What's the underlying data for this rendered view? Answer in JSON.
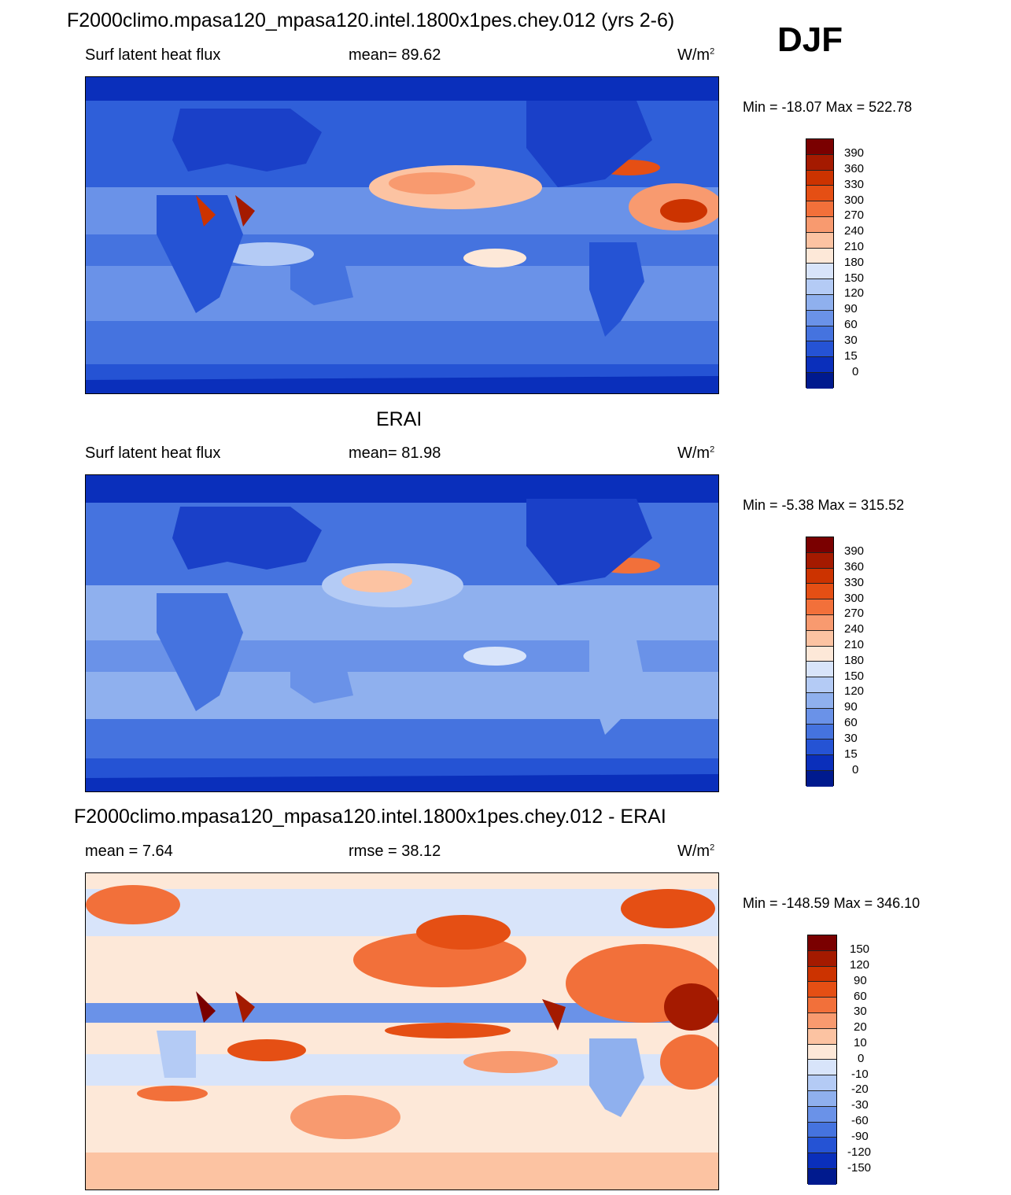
{
  "season": "DJF",
  "panels": [
    {
      "title": "F2000climo.mpasa120_mpasa120.intel.1800x1pes.chey.012 (yrs 2-6)",
      "left_label": "Surf latent heat flux",
      "center_label": "mean=  89.62",
      "unit_base": "W/m",
      "unit_exp": "2",
      "minmax": "Min = -18.07 Max = 522.78",
      "legend_labels": [
        "390",
        "360",
        "330",
        "300",
        "270",
        "240",
        "210",
        "180",
        "150",
        "120",
        "90",
        "60",
        "30",
        "15",
        "0"
      ],
      "legend_colors": [
        "#7a0000",
        "#a41a00",
        "#cc3300",
        "#e54f14",
        "#f2703a",
        "#f89a6f",
        "#fcc3a2",
        "#fde8d8",
        "#d8e4fa",
        "#b4cbf5",
        "#8fb0ee",
        "#6a92e8",
        "#4573df",
        "#2553d4",
        "#0a2fbb",
        "#001a8e"
      ],
      "map_description": "model surface latent heat flux climatology"
    },
    {
      "title": "ERAI",
      "left_label": "Surf latent heat flux",
      "center_label": "mean=  81.98",
      "unit_base": "W/m",
      "unit_exp": "2",
      "minmax": "Min =  -5.38 Max = 315.52",
      "legend_labels": [
        "390",
        "360",
        "330",
        "300",
        "270",
        "240",
        "210",
        "180",
        "150",
        "120",
        "90",
        "60",
        "30",
        "15",
        "0"
      ],
      "legend_colors": [
        "#7a0000",
        "#a41a00",
        "#cc3300",
        "#e54f14",
        "#f2703a",
        "#f89a6f",
        "#fcc3a2",
        "#fde8d8",
        "#d8e4fa",
        "#b4cbf5",
        "#8fb0ee",
        "#6a92e8",
        "#4573df",
        "#2553d4",
        "#0a2fbb",
        "#001a8e"
      ],
      "map_description": "ERAI surface latent heat flux climatology"
    },
    {
      "title": "F2000climo.mpasa120_mpasa120.intel.1800x1pes.chey.012 - ERAI",
      "left_label": "mean =   7.64",
      "center_label": "rmse =  38.12",
      "unit_base": "W/m",
      "unit_exp": "2",
      "minmax": "Min = -148.59 Max = 346.10",
      "legend_labels": [
        "150",
        "120",
        "90",
        "60",
        "30",
        "20",
        "10",
        "0",
        "-10",
        "-20",
        "-30",
        "-60",
        "-90",
        "-120",
        "-150"
      ],
      "legend_colors": [
        "#7a0000",
        "#a41a00",
        "#cc3300",
        "#e54f14",
        "#f2703a",
        "#f89a6f",
        "#fcc3a2",
        "#fde8d8",
        "#d8e4fa",
        "#b4cbf5",
        "#8fb0ee",
        "#6a92e8",
        "#4573df",
        "#2553d4",
        "#0a2fbb",
        "#001a8e"
      ],
      "map_description": "model minus ERAI difference"
    }
  ]
}
